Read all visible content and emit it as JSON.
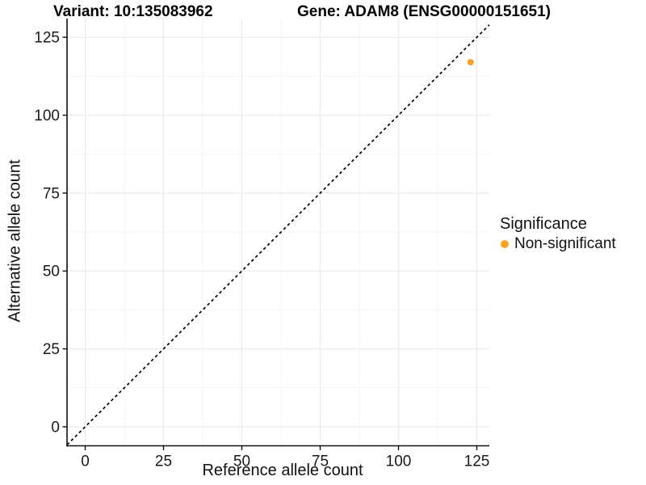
{
  "chart_data": {
    "type": "scatter",
    "titles": {
      "left": "Variant: 10:135083962",
      "right": "Gene: ADAM8 (ENSG00000151651)"
    },
    "xlabel": "Reference allele count",
    "ylabel": "Alternative allele count",
    "x_ticks": [
      0,
      25,
      50,
      75,
      100,
      125
    ],
    "y_ticks": [
      0,
      25,
      50,
      75,
      100,
      125
    ],
    "x_minor": [
      12.5,
      37.5,
      62.5,
      87.5,
      112.5
    ],
    "y_minor": [
      12.5,
      37.5,
      62.5,
      87.5,
      112.5
    ],
    "xlim": [
      -5.8,
      129
    ],
    "ylim": [
      -6.1,
      131
    ],
    "grid": true,
    "points": [
      {
        "x": 123,
        "y": 117,
        "series": "Non-significant"
      }
    ],
    "identity_line": {
      "slope": 1,
      "intercept": 0,
      "style": "dashed"
    },
    "legend": {
      "title": "Significance",
      "position": "right",
      "entries": [
        {
          "label": "Non-significant",
          "color": "#FAA223"
        }
      ]
    },
    "colors": {
      "point": "#FAA223",
      "grid_major": "#EBEBEB",
      "grid_minor": "#F4F4F4",
      "axis": "#111111",
      "text": "#1A1A1A",
      "identity_line": "#000000",
      "background": "#FFFFFF"
    }
  }
}
